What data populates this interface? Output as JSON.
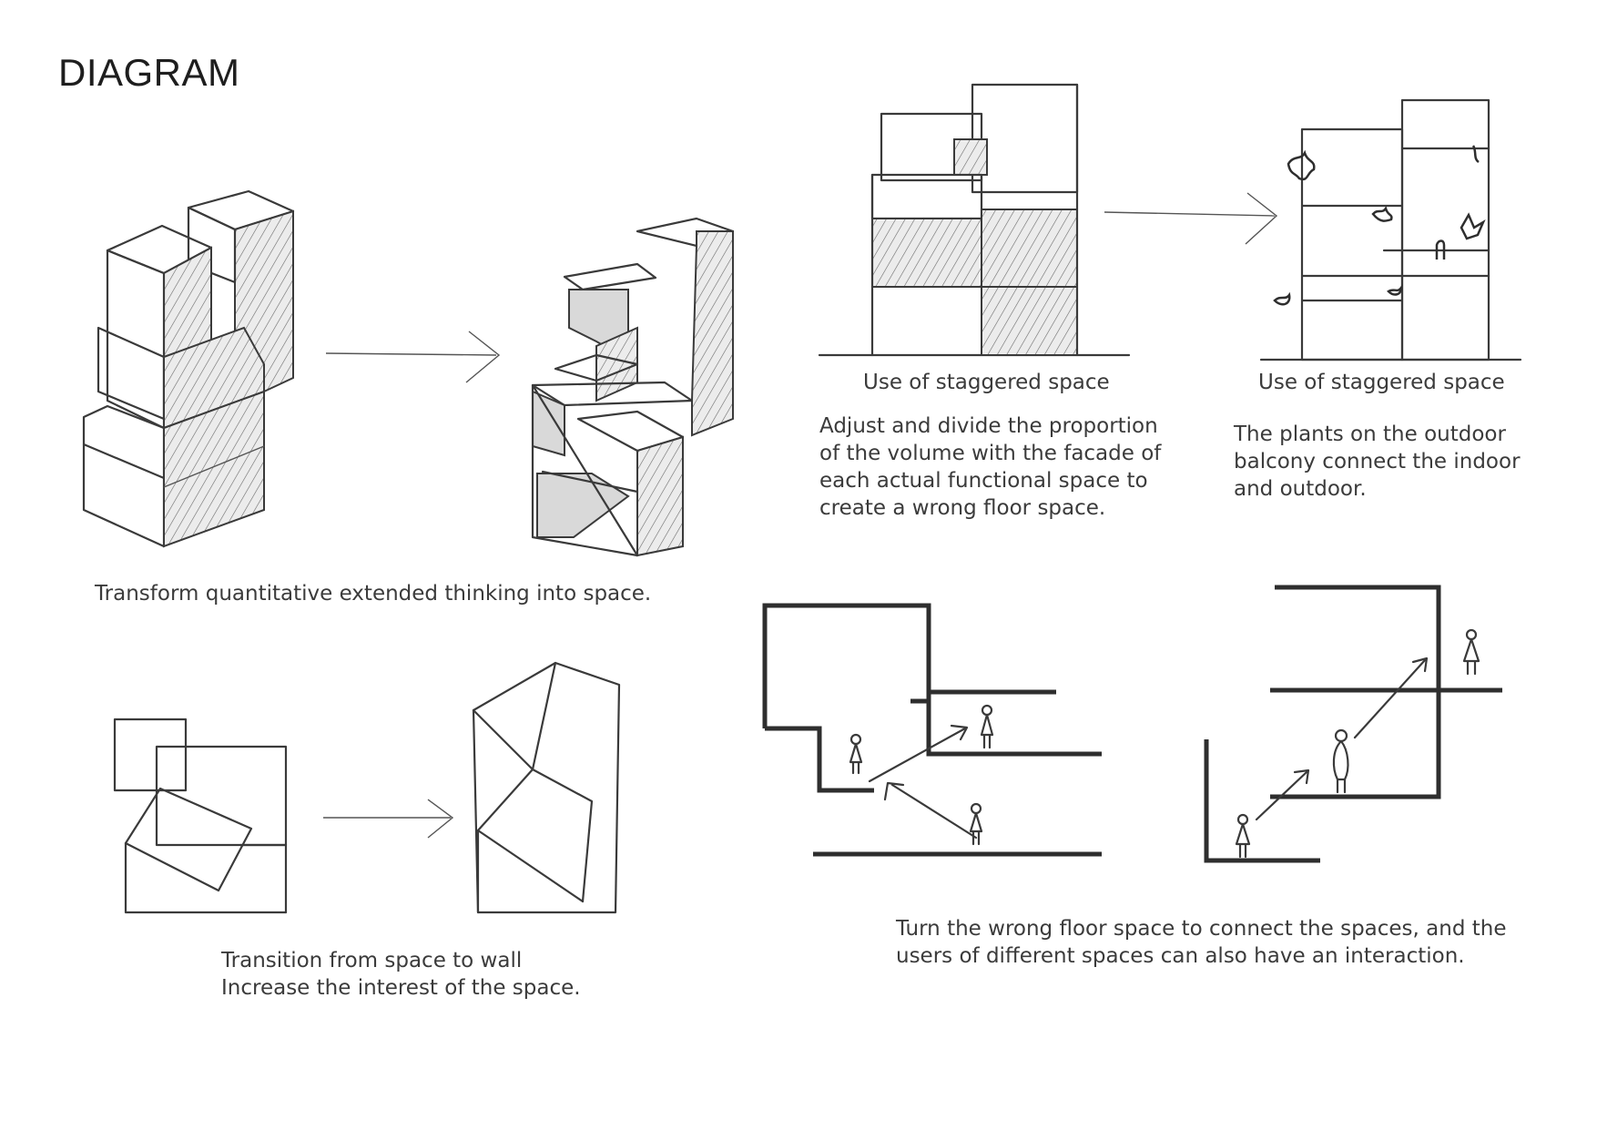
{
  "title": "DIAGRAM",
  "captions": {
    "transform": "Transform quantitative extended thinking into space.",
    "staggered_left": "Use of staggered space",
    "staggered_right": "Use of staggered space",
    "adjust": [
      "Adjust and divide the proportion",
      "of the volume with the facade of",
      "each actual functional space to",
      "create a wrong floor space."
    ],
    "plants": [
      "The plants on the outdoor",
      "balcony connect the indoor",
      "and outdoor."
    ],
    "transition": [
      "Transition from space to wall",
      "Increase the interest of the space."
    ],
    "turn": [
      "Turn the wrong floor space to connect the spaces, and the",
      "users of different spaces can also have an interaction."
    ]
  }
}
